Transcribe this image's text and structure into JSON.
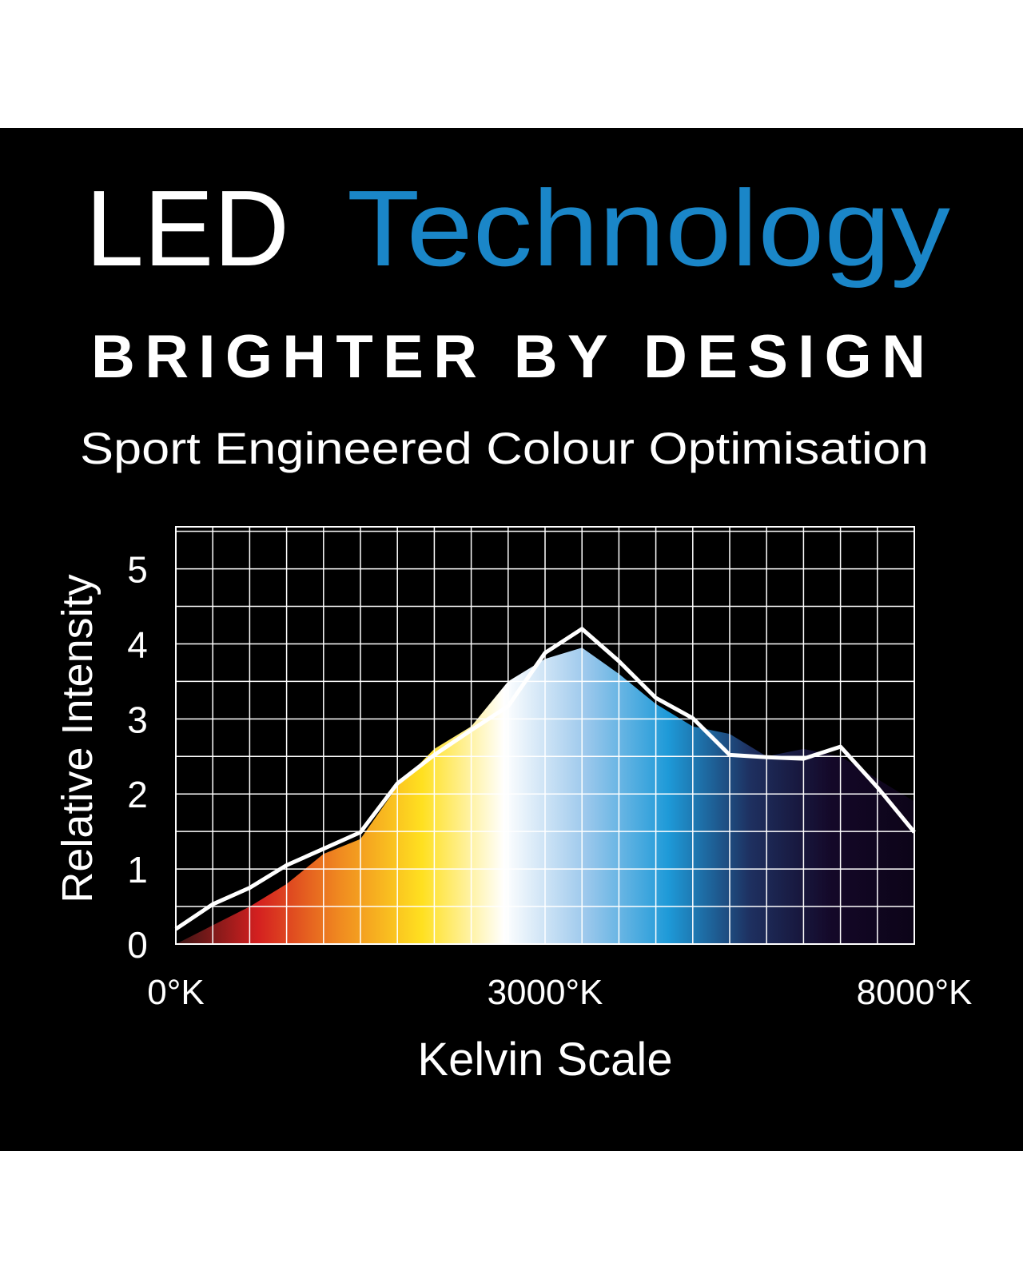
{
  "chart_data": {
    "type": "line",
    "title": [
      "LED",
      "Technology"
    ],
    "title_colors": [
      "#ffffff",
      "#1a86c8"
    ],
    "subtitle": [
      "BRIGHTER BY DESIGN",
      "Sport Engineered Colour Optimisation"
    ],
    "ylabel": "Relative Intensity",
    "xlabel": "Kelvin Scale",
    "categories": [
      "0°K",
      null,
      null,
      null,
      null,
      null,
      null,
      null,
      null,
      null,
      "3000°K",
      null,
      null,
      null,
      null,
      null,
      null,
      null,
      null,
      null,
      "8000°K"
    ],
    "series": [
      {
        "type": "area",
        "colors": [
          "#3a1414",
          "#d42020",
          "#f08a20",
          "#ffe020",
          "#ffffff",
          "#9cc8ec",
          "#1e9ad8",
          "#1e3060",
          "#140828",
          "#0c0418"
        ],
        "values": [
          0,
          0.25,
          0.5,
          0.8,
          1.2,
          1.4,
          2.1,
          2.6,
          2.9,
          3.5,
          3.8,
          3.95,
          3.6,
          3.2,
          2.9,
          2.8,
          2.5,
          2.6,
          2.5,
          2.2,
          1.9
        ]
      },
      {
        "type": "line",
        "color": "#ffffff",
        "values": [
          0.2,
          0.53,
          0.75,
          1.05,
          1.27,
          1.49,
          2.14,
          2.52,
          2.85,
          3.17,
          3.88,
          4.2,
          3.77,
          3.28,
          3.01,
          2.52,
          2.49,
          2.47,
          2.63,
          2.09,
          1.49
        ]
      }
    ],
    "ylim": [
      0,
      5.56
    ],
    "yticks": [
      0,
      1,
      2,
      3,
      4,
      5
    ],
    "minor_yticks": [
      0.5,
      1.5,
      2.5,
      3.5,
      4.5,
      5.5
    ],
    "grid": true
  }
}
